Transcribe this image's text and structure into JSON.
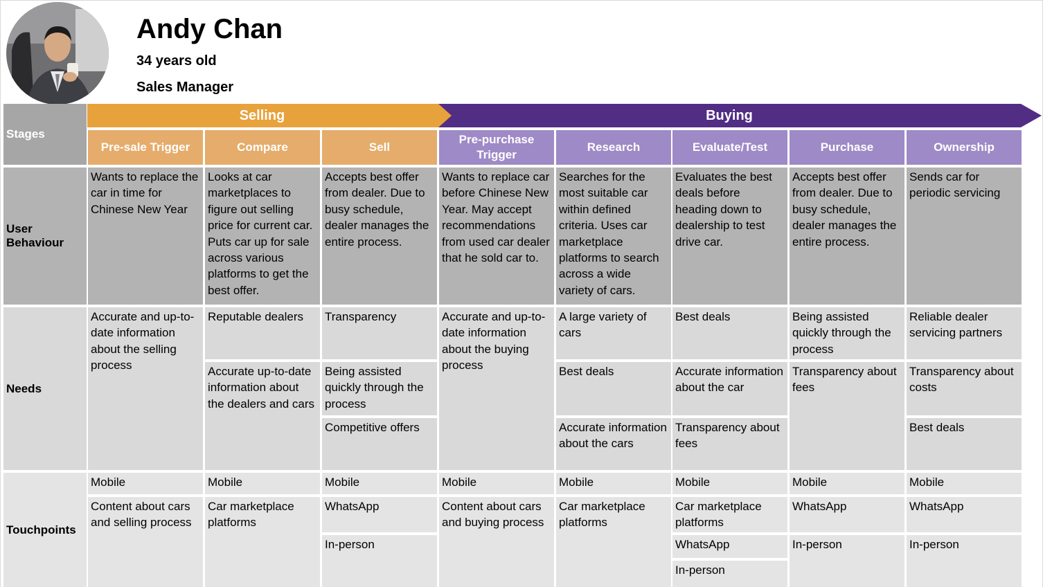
{
  "persona": {
    "name": "Andy Chan",
    "age": "34 years old",
    "role": "Sales Manager"
  },
  "labels": {
    "stages": "Stages",
    "user_behaviour": "User Behaviour",
    "needs": "Needs",
    "touchpoints": "Touchpoints"
  },
  "phases": {
    "selling": "Selling",
    "buying": "Buying"
  },
  "colors": {
    "selling_arrow": "#e8a23c",
    "selling_stage": "#e5ac6b",
    "buying_arrow": "#512d84",
    "buying_stage": "#9e8ac6",
    "label_grey": "#a6a6a6"
  },
  "stages": [
    {
      "title": "Pre-sale Trigger",
      "behaviour": "Wants to replace the car in time for Chinese New Year",
      "needs": [
        "Accurate and up-to-date information about the selling process"
      ],
      "touchpoints": [
        "Mobile",
        "Content about cars and selling process"
      ]
    },
    {
      "title": "Compare",
      "behaviour": "Looks at car marketplaces to figure out selling price for current car. Puts car up for sale across various platforms to get the best offer.",
      "needs": [
        "Reputable dealers",
        "Accurate up-to-date information about the dealers and cars"
      ],
      "touchpoints": [
        "Mobile",
        "Car marketplace platforms"
      ]
    },
    {
      "title": "Sell",
      "behaviour": "Accepts best offer from dealer. Due to busy schedule, dealer manages the entire process.",
      "needs": [
        "Transparency",
        "Being assisted quickly through the process",
        "Competitive offers"
      ],
      "touchpoints": [
        "Mobile",
        "WhatsApp",
        "In-person"
      ]
    },
    {
      "title": "Pre-purchase Trigger",
      "behaviour": "Wants to replace car before Chinese New Year.  May accept recommendations from used car dealer that he sold car to.",
      "needs": [
        "Accurate and up-to-date information about the buying process"
      ],
      "touchpoints": [
        "Mobile",
        "Content about cars and buying process"
      ]
    },
    {
      "title": "Research",
      "behaviour": "Searches for the most suitable car within defined criteria. Uses car marketplace platforms to search across a wide variety of cars.",
      "needs": [
        "A large variety of cars",
        "Best deals",
        "Accurate information about the cars"
      ],
      "touchpoints": [
        "Mobile",
        "Car marketplace platforms"
      ]
    },
    {
      "title": "Evaluate/Test",
      "behaviour": "Evaluates the best deals before heading down to dealership to test drive car.",
      "needs": [
        "Best deals",
        "Accurate information about the car",
        "Transparency  about fees"
      ],
      "touchpoints": [
        "Mobile",
        "Car marketplace platforms",
        "WhatsApp",
        "In-person"
      ]
    },
    {
      "title": "Purchase",
      "behaviour": "Accepts best offer from dealer. Due to busy schedule, dealer manages the entire process.",
      "needs": [
        "Being assisted quickly through the process",
        "Transparency about fees"
      ],
      "touchpoints": [
        "Mobile",
        "WhatsApp",
        "In-person"
      ]
    },
    {
      "title": "Ownership",
      "behaviour": "Sends car for periodic servicing",
      "needs": [
        "Reliable dealer servicing partners",
        "Transparency  about costs",
        "Best deals"
      ],
      "touchpoints": [
        "Mobile",
        "WhatsApp",
        "In-person"
      ]
    }
  ]
}
